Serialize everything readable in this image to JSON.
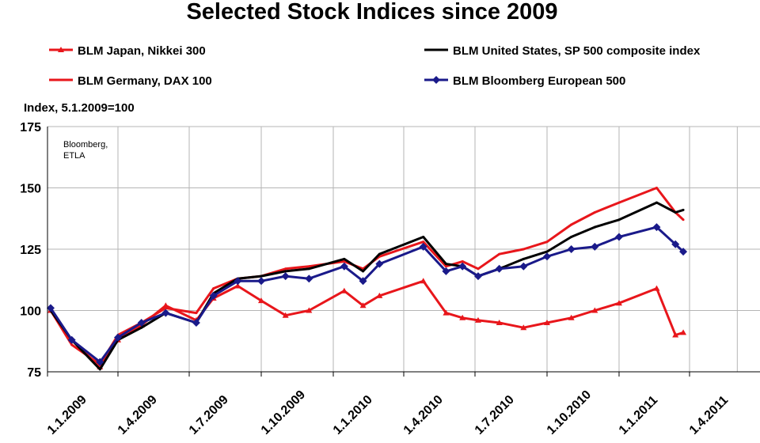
{
  "chart_data": {
    "type": "line",
    "title": "Selected Stock Indices since 2009",
    "ylabel": "Index, 5.1.2009=100",
    "source_note": [
      "Bloomberg,",
      "ETLA"
    ],
    "ylim": [
      75,
      175
    ],
    "yticks": [
      75,
      100,
      125,
      150,
      175
    ],
    "grid": true,
    "legend_position": "top",
    "x_ticks": [
      "1.1.2009",
      "1.4.2009",
      "1.7.2009",
      "1.10.2009",
      "1.1.2010",
      "1.4.2010",
      "1.7.2010",
      "1.10.2010",
      "1.1.2011",
      "1.4.2011"
    ],
    "x_range": [
      "2009-01-01",
      "2011-06-30"
    ],
    "x_dates": [
      "2009-01-05",
      "2009-02-01",
      "2009-03-09",
      "2009-04-01",
      "2009-05-01",
      "2009-06-01",
      "2009-07-10",
      "2009-08-01",
      "2009-09-01",
      "2009-10-01",
      "2009-11-01",
      "2009-12-01",
      "2010-01-15",
      "2010-02-08",
      "2010-03-01",
      "2010-04-26",
      "2010-05-25",
      "2010-06-15",
      "2010-07-05",
      "2010-08-01",
      "2010-09-01",
      "2010-10-01",
      "2010-11-01",
      "2010-12-01",
      "2011-01-01",
      "2011-02-18",
      "2011-03-14",
      "2011-03-24"
    ],
    "series": [
      {
        "name": "BLM Japan, Nikkei 300",
        "color": "#e8161b",
        "marker": "triangle",
        "values": [
          100,
          88,
          77,
          88,
          94,
          102,
          96,
          105,
          110,
          104,
          98,
          100,
          108,
          102,
          106,
          112,
          99,
          97,
          96,
          95,
          93,
          95,
          97,
          100,
          103,
          109,
          90,
          91
        ]
      },
      {
        "name": "BLM Germany, DAX 100",
        "color": "#e8161b",
        "marker": "none",
        "values": [
          100,
          86,
          78,
          90,
          95,
          101,
          99,
          109,
          113,
          114,
          117,
          118,
          120,
          117,
          122,
          128,
          118,
          120,
          117,
          123,
          125,
          128,
          135,
          140,
          144,
          150,
          140,
          137
        ]
      },
      {
        "name": "BLM United States, SP 500 composite index",
        "color": "#000000",
        "marker": "none",
        "values": [
          100,
          88,
          76,
          88,
          93,
          99,
          95,
          107,
          113,
          114,
          116,
          117,
          121,
          116,
          123,
          130,
          119,
          118,
          114,
          117,
          121,
          124,
          130,
          134,
          137,
          144,
          140,
          141
        ]
      },
      {
        "name": "BLM Bloomberg European 500",
        "color": "#1a1a8a",
        "marker": "diamond",
        "values": [
          101,
          88,
          79,
          89,
          95,
          99,
          95,
          106,
          112,
          112,
          114,
          113,
          118,
          112,
          119,
          126,
          116,
          118,
          114,
          117,
          118,
          122,
          125,
          126,
          130,
          134,
          127,
          124
        ]
      }
    ]
  }
}
